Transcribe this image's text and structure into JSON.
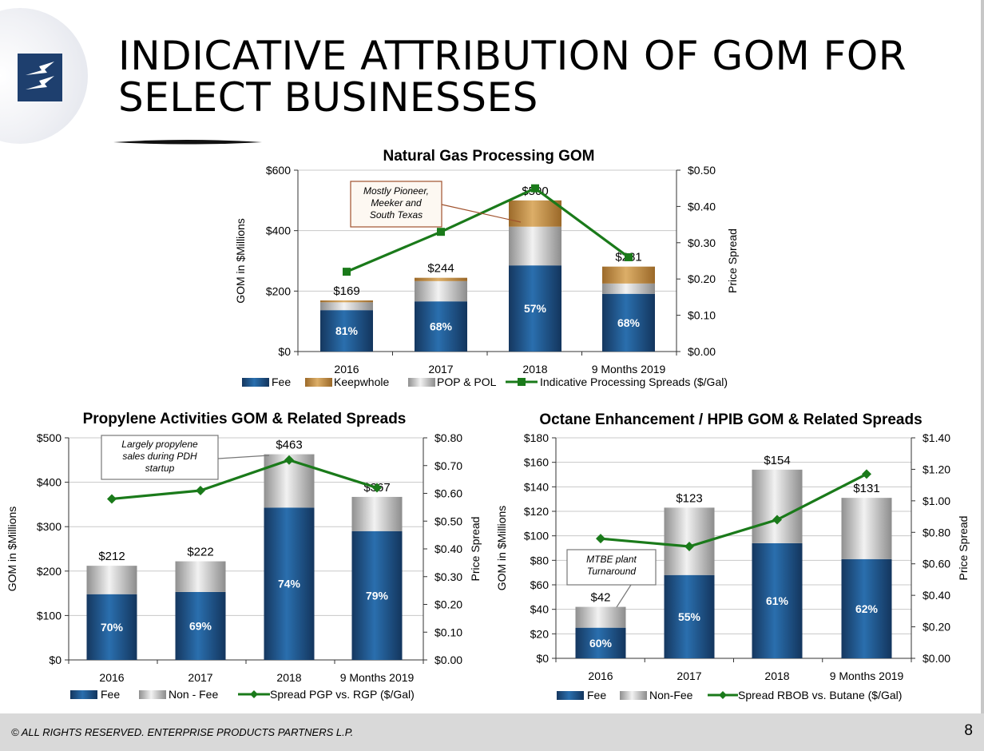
{
  "page": {
    "title_line1": "INDICATIVE ATTRIBUTION OF GOM FOR",
    "title_line2": "SELECT BUSINESSES",
    "footer": "© ALL RIGHTS RESERVED. ENTERPRISE PRODUCTS PARTNERS L.P.",
    "page_number": "8",
    "logo_icon": "lightning-bolt-logo-icon",
    "colors": {
      "fee": "#1f5a93",
      "keepwhole": "#c9964f",
      "grey": "#c0c0c0",
      "line": "#1a7a1a",
      "logo": "#1e3f6e"
    }
  },
  "chart_data": [
    {
      "id": "gas",
      "type": "bar",
      "title": "Natural Gas Processing GOM",
      "ylabel": "GOM in $Millions",
      "y2label": "Price Spread",
      "categories": [
        "2016",
        "2017",
        "2018",
        "9 Months 2019"
      ],
      "ylim": [
        0,
        600
      ],
      "y2lim": [
        0,
        0.5
      ],
      "yticks": [
        "$0",
        "$200",
        "$400",
        "$600"
      ],
      "y2ticks": [
        "$0.00",
        "$0.10",
        "$0.20",
        "$0.30",
        "$0.40",
        "$0.50"
      ],
      "series": [
        {
          "name": "Fee",
          "color": "fee",
          "values": [
            137,
            166,
            285,
            191
          ]
        },
        {
          "name": "Keepwhole",
          "color": "keepwhole",
          "values": [
            6,
            11,
            87,
            56
          ]
        },
        {
          "name": "POP & POL",
          "color": "grey",
          "values": [
            26,
            67,
            128,
            34
          ]
        }
      ],
      "stack_order": [
        "Fee",
        "POP & POL",
        "Keepwhole"
      ],
      "totals": [
        "$169",
        "$244",
        "$500",
        "$281"
      ],
      "fee_pct": [
        "81%",
        "68%",
        "57%",
        "68%"
      ],
      "line": {
        "name": "Indicative Processing Spreads ($/Gal)",
        "values": [
          0.22,
          0.33,
          0.45,
          0.26
        ]
      },
      "legend": [
        "Fee",
        "Keepwhole",
        "POP & POL",
        "Indicative Processing Spreads ($/Gal)"
      ],
      "annotation": [
        "Mostly Pioneer,",
        "Meeker and",
        "South Texas"
      ]
    },
    {
      "id": "propylene",
      "type": "bar",
      "title": "Propylene Activities GOM & Related Spreads",
      "ylabel": "GOM in $Millions",
      "y2label": "Price Spread",
      "categories": [
        "2016",
        "2017",
        "2018",
        "9 Months 2019"
      ],
      "ylim": [
        0,
        500
      ],
      "y2lim": [
        0,
        0.8
      ],
      "yticks": [
        "$0",
        "$100",
        "$200",
        "$300",
        "$400",
        "$500"
      ],
      "y2ticks": [
        "$0.00",
        "$0.10",
        "$0.20",
        "$0.30",
        "$0.40",
        "$0.50",
        "$0.60",
        "$0.70",
        "$0.80"
      ],
      "series": [
        {
          "name": "Fee",
          "color": "fee",
          "values": [
            148,
            153,
            343,
            290
          ]
        },
        {
          "name": "Non - Fee",
          "color": "grey",
          "values": [
            64,
            69,
            120,
            77
          ]
        }
      ],
      "stack_order": [
        "Fee",
        "Non - Fee"
      ],
      "totals": [
        "$212",
        "$222",
        "$463",
        "$367"
      ],
      "fee_pct": [
        "70%",
        "69%",
        "74%",
        "79%"
      ],
      "line": {
        "name": "Spread PGP vs. RGP ($/Gal)",
        "values": [
          0.58,
          0.61,
          0.72,
          0.62
        ]
      },
      "legend": [
        "Fee",
        "Non - Fee",
        "Spread PGP vs. RGP ($/Gal)"
      ],
      "annotation": [
        "Largely propylene",
        "sales during PDH",
        "startup"
      ]
    },
    {
      "id": "octane",
      "type": "bar",
      "title": "Octane Enhancement / HPIB GOM & Related Spreads",
      "ylabel": "GOM in $Millions",
      "y2label": "Price Spread",
      "categories": [
        "2016",
        "2017",
        "2018",
        "9 Months 2019"
      ],
      "ylim": [
        0,
        180
      ],
      "y2lim": [
        0,
        1.4
      ],
      "yticks": [
        "$0",
        "$20",
        "$40",
        "$60",
        "$80",
        "$100",
        "$120",
        "$140",
        "$160",
        "$180"
      ],
      "y2ticks": [
        "$0.00",
        "$0.20",
        "$0.40",
        "$0.60",
        "$0.80",
        "$1.00",
        "$1.20",
        "$1.40"
      ],
      "series": [
        {
          "name": "Fee",
          "color": "fee",
          "values": [
            25,
            68,
            94,
            81
          ]
        },
        {
          "name": "Non-Fee",
          "color": "grey",
          "values": [
            17,
            55,
            60,
            50
          ]
        }
      ],
      "stack_order": [
        "Fee",
        "Non-Fee"
      ],
      "totals": [
        "$42",
        "$123",
        "$154",
        "$131"
      ],
      "fee_pct": [
        "60%",
        "55%",
        "61%",
        "62%"
      ],
      "line": {
        "name": "Spread RBOB vs. Butane ($/Gal)",
        "values": [
          0.76,
          0.71,
          0.88,
          1.17
        ]
      },
      "legend": [
        "Fee",
        "Non-Fee",
        "Spread RBOB vs. Butane ($/Gal)"
      ],
      "annotation": [
        "MTBE  plant",
        "Turnaround"
      ]
    }
  ]
}
